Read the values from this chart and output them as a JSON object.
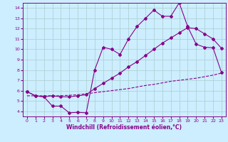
{
  "bg_color": "#cceeff",
  "line_color": "#880088",
  "grid_color": "#aacccc",
  "xlabel": "Windchill (Refroidissement éolien,°C)",
  "xlim": [
    -0.5,
    23.5
  ],
  "ylim": [
    3.5,
    14.5
  ],
  "yticks": [
    4,
    5,
    6,
    7,
    8,
    9,
    10,
    11,
    12,
    13,
    14
  ],
  "xticks": [
    0,
    1,
    2,
    3,
    4,
    5,
    6,
    7,
    8,
    9,
    10,
    11,
    12,
    13,
    14,
    15,
    16,
    17,
    18,
    19,
    20,
    21,
    22,
    23
  ],
  "line1_x": [
    0,
    1,
    2,
    3,
    4,
    5,
    6,
    7,
    8,
    9,
    10,
    11,
    12,
    13,
    14,
    15,
    16,
    17,
    18,
    19,
    20,
    21,
    22,
    23
  ],
  "line1_y": [
    5.9,
    5.5,
    5.4,
    4.5,
    4.5,
    3.85,
    3.9,
    3.85,
    8.0,
    10.2,
    10.0,
    9.5,
    11.0,
    12.2,
    13.0,
    13.8,
    13.2,
    13.2,
    14.5,
    12.2,
    10.5,
    10.2,
    10.15,
    7.75
  ],
  "line2_x": [
    0,
    1,
    2,
    3,
    4,
    5,
    6,
    7,
    8,
    9,
    10,
    11,
    12,
    13,
    14,
    15,
    16,
    17,
    18,
    19,
    20,
    21,
    22,
    23
  ],
  "line2_y": [
    5.9,
    5.5,
    5.4,
    5.5,
    5.4,
    5.4,
    5.5,
    5.6,
    6.2,
    6.7,
    7.2,
    7.7,
    8.3,
    8.8,
    9.4,
    10.0,
    10.6,
    11.1,
    11.6,
    12.1,
    12.0,
    11.5,
    11.0,
    10.1
  ],
  "line3_x": [
    0,
    1,
    2,
    3,
    4,
    5,
    6,
    7,
    8,
    9,
    10,
    11,
    12,
    13,
    14,
    15,
    16,
    17,
    18,
    19,
    20,
    21,
    22,
    23
  ],
  "line3_y": [
    5.5,
    5.5,
    5.5,
    5.5,
    5.5,
    5.55,
    5.6,
    5.7,
    5.8,
    5.9,
    6.0,
    6.1,
    6.2,
    6.35,
    6.5,
    6.6,
    6.75,
    6.9,
    7.0,
    7.1,
    7.2,
    7.35,
    7.5,
    7.7
  ]
}
